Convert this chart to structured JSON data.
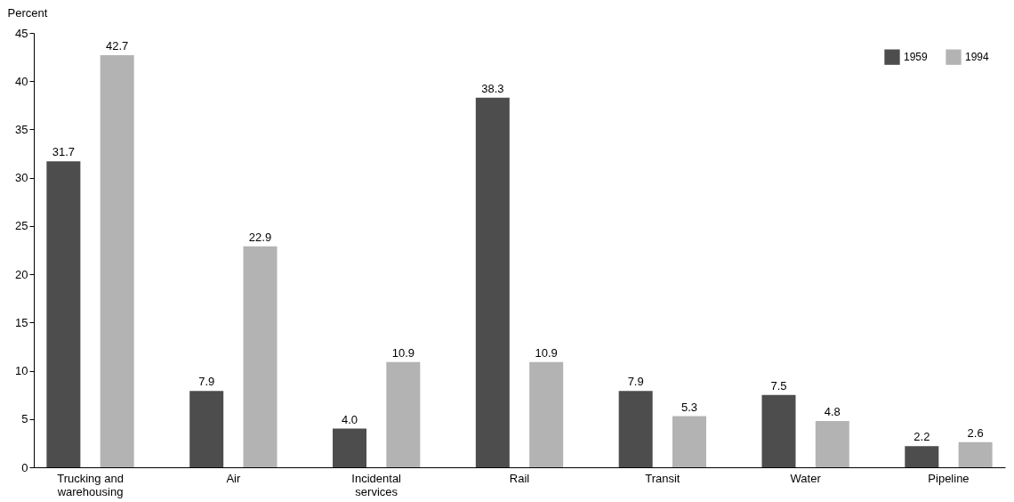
{
  "chart_data": {
    "type": "bar",
    "ylabel": "Percent",
    "categories": [
      "Trucking and warehousing",
      "Air",
      "Incidental services",
      "Rail",
      "Transit",
      "Water",
      "Pipeline"
    ],
    "series": [
      {
        "name": "1959",
        "color": "#4d4d4d",
        "values": [
          31.7,
          7.9,
          4.0,
          38.3,
          7.9,
          7.5,
          2.2
        ],
        "value_labels": [
          "31.7",
          "7.9",
          "4.0",
          "38.3",
          "7.9",
          "7.5",
          "2.2"
        ]
      },
      {
        "name": "1994",
        "color": "#b3b3b3",
        "values": [
          42.7,
          22.9,
          10.9,
          10.9,
          5.3,
          4.8,
          2.6
        ],
        "value_labels": [
          "42.7",
          "22.9",
          "10.9",
          "10.9",
          "5.3",
          "4.8",
          "2.6"
        ]
      }
    ],
    "ylim": [
      0,
      45
    ],
    "yticks": [
      0,
      5,
      10,
      15,
      20,
      25,
      30,
      35,
      40,
      45
    ],
    "grid": false,
    "legend": "top right"
  }
}
